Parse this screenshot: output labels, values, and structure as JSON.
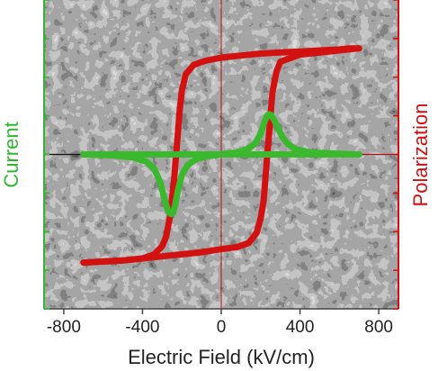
{
  "chart_data": {
    "type": "line",
    "xlabel": "Electric Field (kV/cm)",
    "ylabel_left": "Current",
    "ylabel_right": "Polarization",
    "xlim": [
      -900,
      900
    ],
    "xticks": [
      -800,
      -400,
      0,
      400,
      800
    ],
    "xtick_labels": [
      "-800",
      "-400",
      "0",
      "400",
      "800"
    ],
    "ylim": [
      -1.5,
      1.5
    ],
    "background": "grayscale microscopy image (porous domain texture)",
    "grid": false,
    "left_axis_color": "#2db82d",
    "right_axis_color": "#d01010",
    "series": [
      {
        "key": "polarization",
        "color": "#d21111",
        "branches": [
          {
            "x": [
              -700,
              -500,
              -400,
              -340,
              -300,
              -280,
              -260,
              -240,
              -225,
              -210,
              -200,
              -180,
              -140,
              -80,
              0,
              100,
              200,
              300,
              400,
              500,
              600,
              650,
              700
            ],
            "y": [
              -1.05,
              -1.03,
              -1.01,
              -0.97,
              -0.89,
              -0.8,
              -0.6,
              -0.25,
              0.1,
              0.45,
              0.62,
              0.78,
              0.87,
              0.91,
              0.94,
              0.96,
              0.98,
              0.99,
              1.0,
              1.01,
              1.02,
              1.03,
              1.03
            ]
          },
          {
            "x": [
              700,
              600,
              400,
              300,
              280,
              260,
              245,
              230,
              215,
              200,
              180,
              140,
              80,
              0,
              -100,
              -200,
              -300,
              -400,
              -500,
              -600,
              -700
            ],
            "y": [
              1.03,
              1.01,
              0.97,
              0.9,
              0.8,
              0.6,
              0.25,
              -0.1,
              -0.45,
              -0.62,
              -0.76,
              -0.86,
              -0.9,
              -0.92,
              -0.95,
              -0.97,
              -0.99,
              -1.01,
              -1.03,
              -1.04,
              -1.05
            ]
          }
        ]
      },
      {
        "key": "current",
        "color": "#3cb82e",
        "branches": [
          {
            "x": [
              -700,
              -550,
              -450,
              -380,
              -340,
              -310,
              -290,
              -270,
              -255,
              -245,
              -235,
              -220,
              -200,
              -170,
              -130,
              -80,
              0,
              100,
              200,
              300,
              400,
              500,
              600,
              700
            ],
            "y": [
              0,
              -0.01,
              -0.03,
              -0.07,
              -0.14,
              -0.27,
              -0.42,
              -0.55,
              -0.58,
              -0.57,
              -0.5,
              -0.35,
              -0.2,
              -0.1,
              -0.05,
              -0.02,
              0,
              0,
              0,
              0,
              0,
              0,
              0,
              0
            ]
          },
          {
            "x": [
              -700,
              -400,
              -200,
              -100,
              0,
              80,
              130,
              170,
              200,
              220,
              235,
              245,
              255,
              270,
              290,
              310,
              340,
              380,
              450,
              550,
              700
            ],
            "y": [
              0,
              0,
              0,
              0,
              0,
              0.02,
              0.05,
              0.1,
              0.2,
              0.32,
              0.38,
              0.39,
              0.38,
              0.33,
              0.25,
              0.17,
              0.1,
              0.05,
              0.02,
              0.01,
              0
            ]
          }
        ]
      }
    ]
  }
}
